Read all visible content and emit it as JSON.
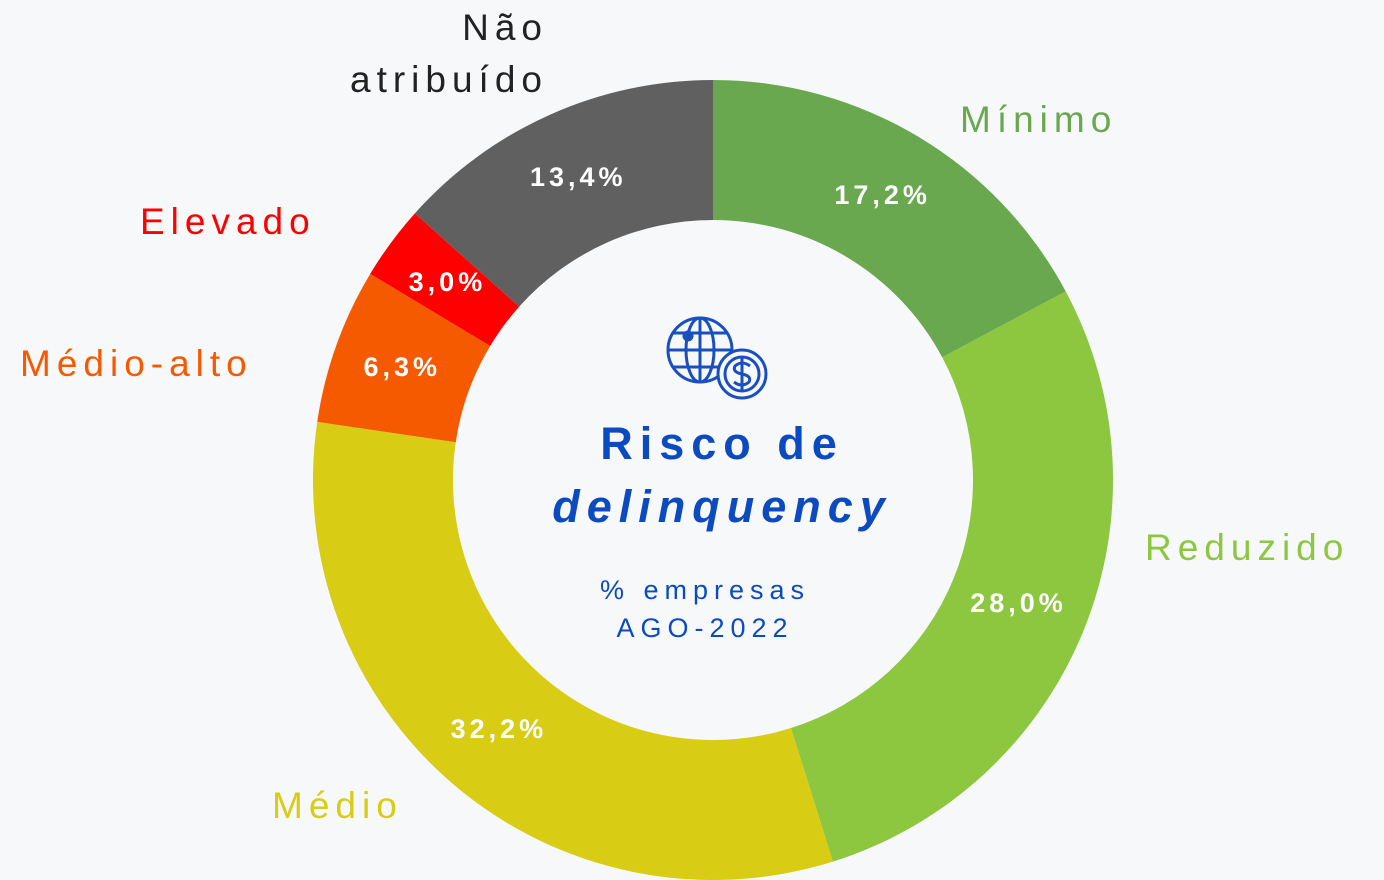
{
  "chart_data": {
    "type": "donut",
    "title": "Risco de",
    "title_emphasis": "delinquency",
    "subtitle": [
      "% empresas",
      "AGO-2022"
    ],
    "categories": [
      "Mínimo",
      "Reduzido",
      "Médio",
      "Médio-alto",
      "Elevado",
      "Não atribuído"
    ],
    "values": [
      17.2,
      28.0,
      32.2,
      6.3,
      3.0,
      13.4
    ],
    "value_labels": [
      "17,2%",
      "28,0%",
      "32,2%",
      "6,3%",
      "3,0%",
      "13,4%"
    ],
    "colors": [
      "#6aa84f",
      "#8dc63f",
      "#d8cc14",
      "#f55a00",
      "#ff0000",
      "#606060"
    ],
    "label_colors": [
      "#6aa84f",
      "#8dc63f",
      "#d8cc14",
      "#f55a00",
      "#ff0000",
      "#222222"
    ]
  }
}
